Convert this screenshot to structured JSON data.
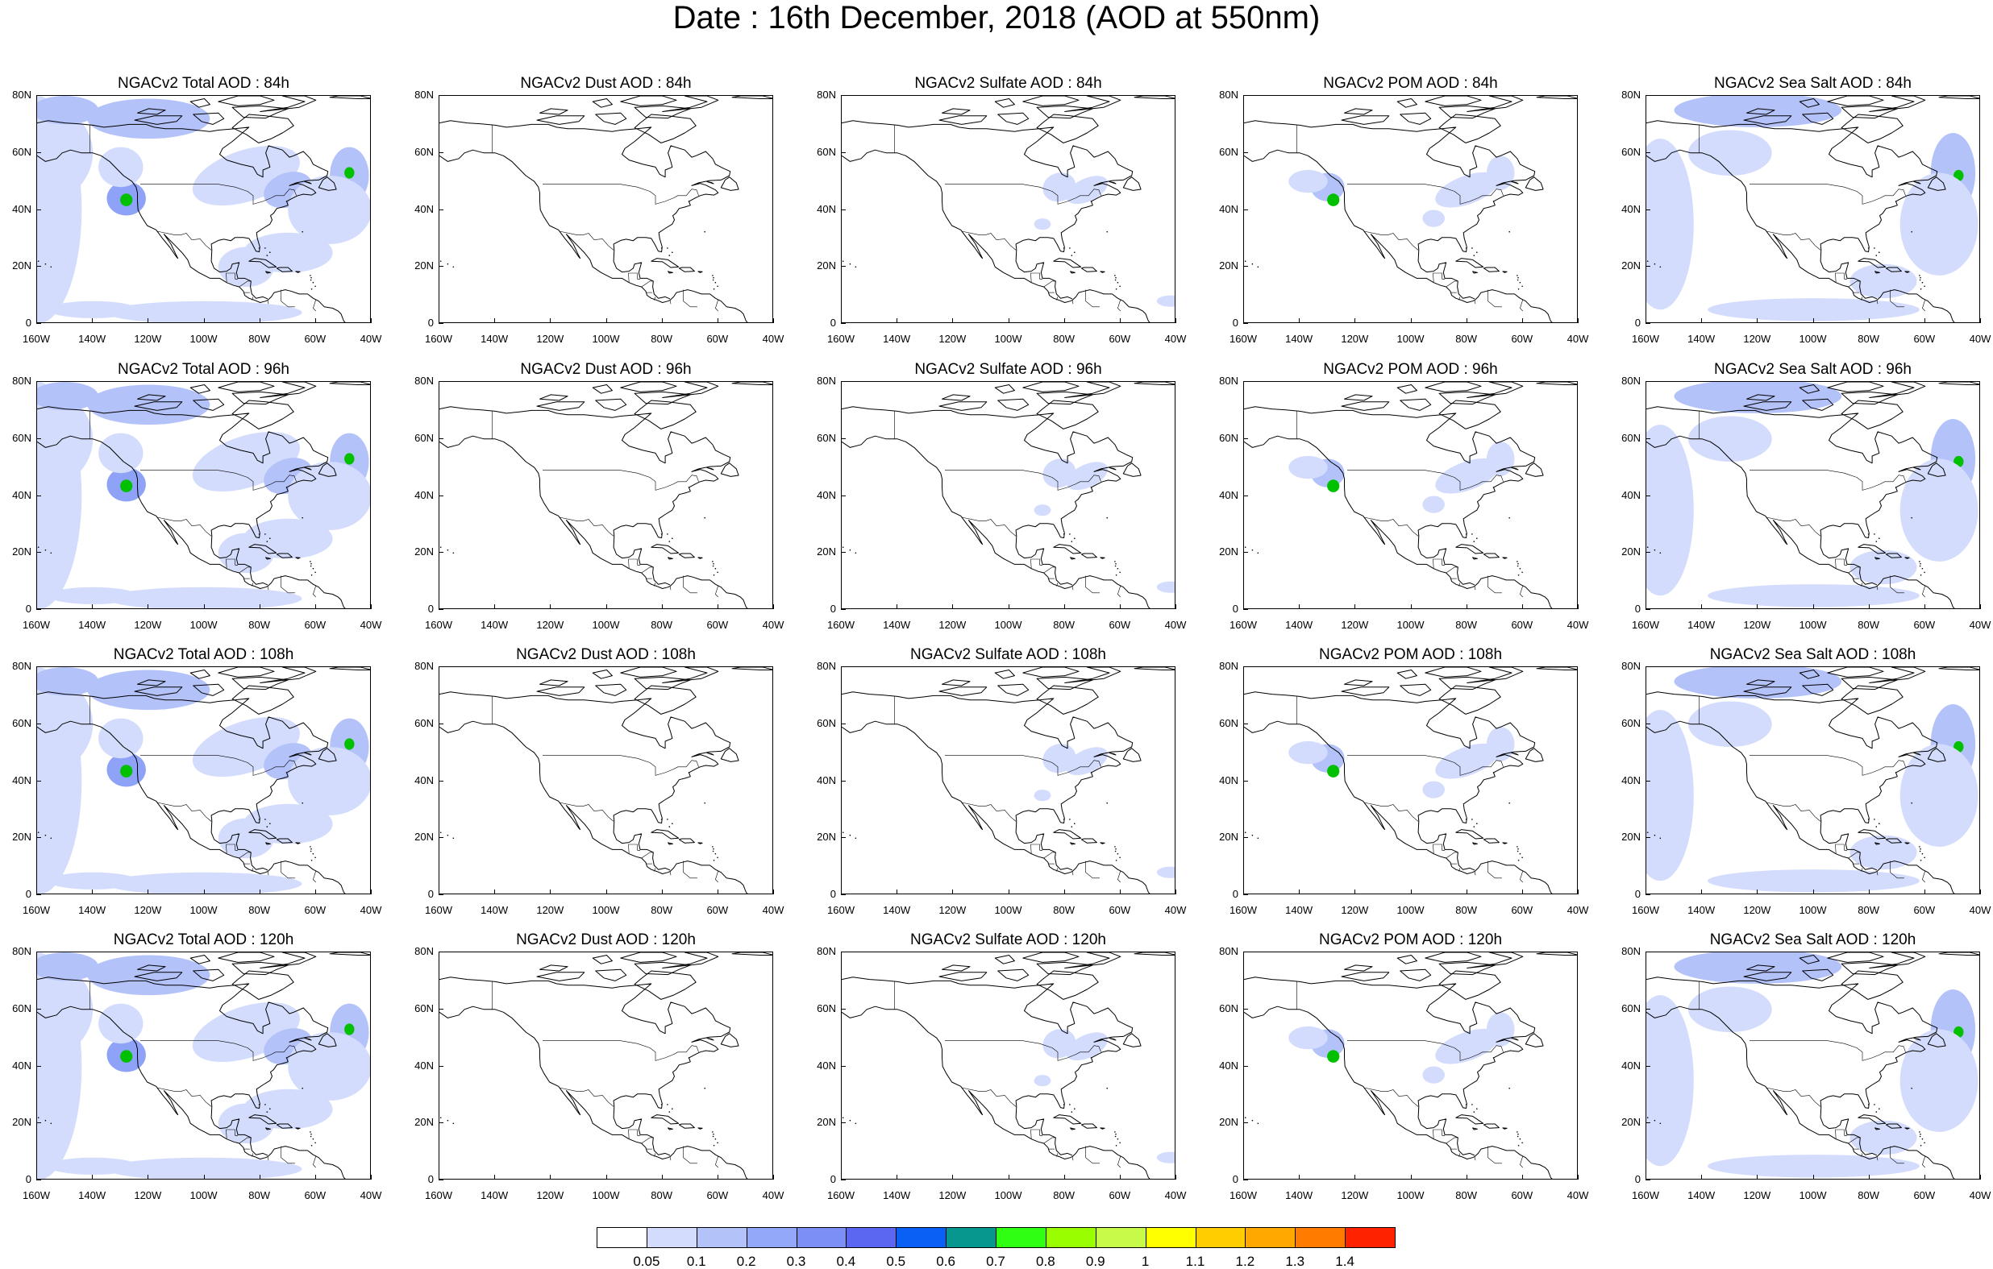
{
  "title": "Date : 16th December, 2018 (AOD at 550nm)",
  "axes": {
    "x_ticks": [
      "160W",
      "140W",
      "120W",
      "100W",
      "80W",
      "60W",
      "40W"
    ],
    "y_ticks": [
      "80N",
      "60N",
      "40N",
      "20N",
      "0"
    ],
    "lon_range": [
      -160,
      -40
    ],
    "lat_range": [
      0,
      80
    ]
  },
  "colors": {
    "map_lines": "#000000",
    "aod_light": "#d3dcfc",
    "aod_mid": "#a9b9fa",
    "aod_high": "#8ea2f7",
    "aod_hot": "#00c000",
    "aod_peak": "#ffff00"
  },
  "panels": [
    {
      "title": "NGACv2 Total AOD : 84h",
      "species": "total",
      "hour": 84
    },
    {
      "title": "NGACv2 Dust AOD : 84h",
      "species": "dust",
      "hour": 84
    },
    {
      "title": "NGACv2 Sulfate AOD : 84h",
      "species": "sulfate",
      "hour": 84
    },
    {
      "title": "NGACv2 POM AOD : 84h",
      "species": "pom",
      "hour": 84
    },
    {
      "title": "NGACv2 Sea Salt AOD : 84h",
      "species": "seasalt",
      "hour": 84
    },
    {
      "title": "NGACv2 Total AOD : 96h",
      "species": "total",
      "hour": 96
    },
    {
      "title": "NGACv2 Dust AOD : 96h",
      "species": "dust",
      "hour": 96
    },
    {
      "title": "NGACv2 Sulfate AOD : 96h",
      "species": "sulfate",
      "hour": 96
    },
    {
      "title": "NGACv2 POM AOD : 96h",
      "species": "pom",
      "hour": 96
    },
    {
      "title": "NGACv2 Sea Salt AOD : 96h",
      "species": "seasalt",
      "hour": 96
    },
    {
      "title": "NGACv2 Total AOD : 108h",
      "species": "total",
      "hour": 108
    },
    {
      "title": "NGACv2 Dust AOD : 108h",
      "species": "dust",
      "hour": 108
    },
    {
      "title": "NGACv2 Sulfate AOD : 108h",
      "species": "sulfate",
      "hour": 108
    },
    {
      "title": "NGACv2 POM AOD : 108h",
      "species": "pom",
      "hour": 108
    },
    {
      "title": "NGACv2 Sea Salt AOD : 108h",
      "species": "seasalt",
      "hour": 108
    },
    {
      "title": "NGACv2 Total AOD : 120h",
      "species": "total",
      "hour": 120
    },
    {
      "title": "NGACv2 Dust AOD : 120h",
      "species": "dust",
      "hour": 120
    },
    {
      "title": "NGACv2 Sulfate AOD : 120h",
      "species": "sulfate",
      "hour": 120
    },
    {
      "title": "NGACv2 POM AOD : 120h",
      "species": "pom",
      "hour": 120
    },
    {
      "title": "NGACv2 Sea Salt  AOD : 120h",
      "species": "seasalt",
      "hour": 120
    }
  ],
  "colorbar": {
    "colors": [
      "#ffffff",
      "#d3dcfc",
      "#b4c2fa",
      "#93a8f8",
      "#7c8ff6",
      "#5b67f0",
      "#0a5ff5",
      "#07978f",
      "#2fff12",
      "#99ff00",
      "#c8fa4a",
      "#ffff00",
      "#ffcd00",
      "#ffa800",
      "#ff7c00",
      "#ff2200"
    ],
    "labels": [
      "0.05",
      "0.1",
      "0.2",
      "0.3",
      "0.4",
      "0.5",
      "0.6",
      "0.7",
      "0.8",
      "0.9",
      "1",
      "1.1",
      "1.2",
      "1.3",
      "1.4"
    ]
  }
}
